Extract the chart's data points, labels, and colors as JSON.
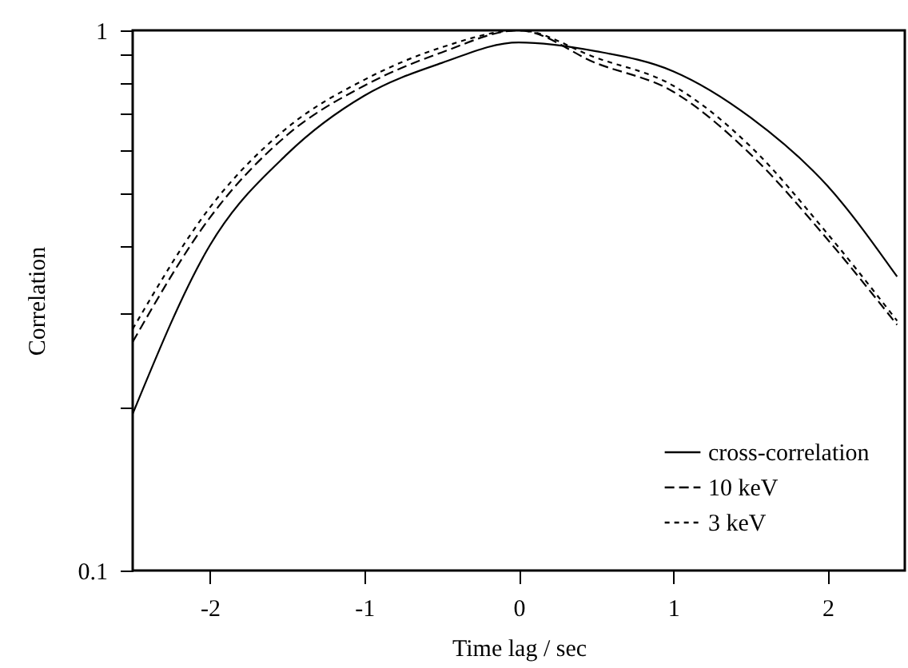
{
  "chart_data": {
    "type": "line",
    "xlabel": "Time lag / sec",
    "ylabel": "Correlation",
    "log": "y",
    "xlim": [
      -2.5,
      2.5
    ],
    "ylim": [
      0.1,
      1
    ],
    "xticks": [
      -2,
      -1,
      0,
      1,
      2
    ],
    "yticks": [
      0.1,
      {
        "value": 0.2,
        "label": null
      },
      {
        "value": 0.3,
        "label": null
      },
      {
        "value": 0.4,
        "label": null
      },
      {
        "value": 0.5,
        "label": null
      },
      {
        "value": 0.6,
        "label": null
      },
      {
        "value": 0.7,
        "label": null
      },
      {
        "value": 0.8,
        "label": null
      },
      {
        "value": 0.9,
        "label": null
      },
      1
    ],
    "x": [
      -2.5,
      -2,
      -1.5,
      -1,
      -0.5,
      0,
      0.5,
      1,
      1.5,
      2,
      2.45
    ],
    "grid": false,
    "legend": "bottom right",
    "marker": "none",
    "series": [
      {
        "name": "cross-correlation",
        "color": "#000000",
        "line_style": "solid",
        "values": [
          0.195,
          0.4,
          0.59,
          0.757,
          0.87,
          0.95,
          0.915,
          0.84,
          0.69,
          0.515,
          0.35
        ]
      },
      {
        "name": "10 keV",
        "color": "#000000",
        "line_style": "dashed",
        "values": [
          0.265,
          0.45,
          0.64,
          0.79,
          0.91,
          1.0,
          0.87,
          0.77,
          0.59,
          0.41,
          0.285
        ]
      },
      {
        "name": "3 keV",
        "color": "#000000",
        "line_style": "dotted",
        "values": [
          0.28,
          0.47,
          0.66,
          0.81,
          0.93,
          1.0,
          0.89,
          0.79,
          0.61,
          0.42,
          0.29
        ]
      }
    ]
  }
}
